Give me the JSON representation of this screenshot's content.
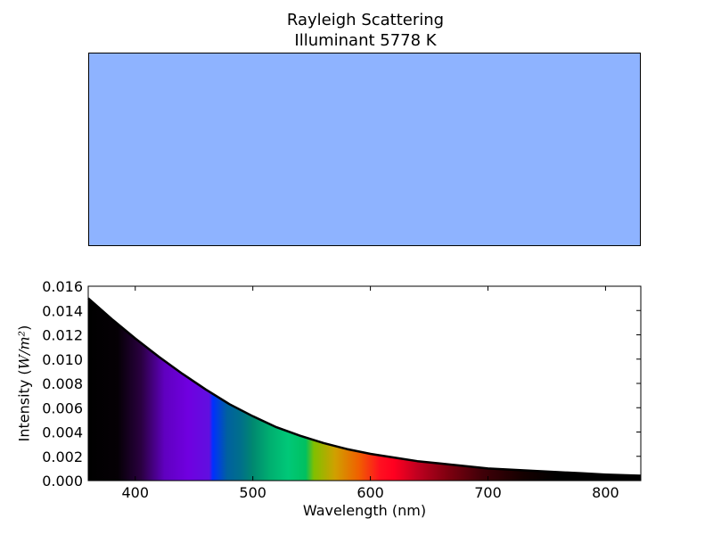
{
  "figure": {
    "title_line1": "Rayleigh Scattering",
    "title_line2": "Illuminant 5778 K",
    "swatch_color": "#8eb3ff"
  },
  "chart_data": {
    "type": "area",
    "xlabel": "Wavelength (nm)",
    "ylabel_prefix": "Intensity (",
    "ylabel_unit": "W/m²",
    "ylabel_suffix": ")",
    "xlim": [
      360,
      830
    ],
    "ylim": [
      0.0,
      0.016
    ],
    "x_ticks": [
      400,
      500,
      600,
      700,
      800
    ],
    "y_ticks": [
      "0.000",
      "0.002",
      "0.004",
      "0.006",
      "0.008",
      "0.010",
      "0.012",
      "0.014",
      "0.016"
    ],
    "grid": false,
    "series": [
      {
        "x": [
          360,
          380,
          400,
          420,
          440,
          460,
          480,
          500,
          520,
          540,
          560,
          580,
          600,
          620,
          640,
          660,
          680,
          700,
          720,
          740,
          760,
          780,
          800,
          830
        ],
        "y": [
          0.015,
          0.0133,
          0.0117,
          0.0102,
          0.0088,
          0.0075,
          0.0063,
          0.0053,
          0.0044,
          0.0037,
          0.0031,
          0.0026,
          0.0022,
          0.0019,
          0.0016,
          0.0014,
          0.0012,
          0.001,
          0.0009,
          0.0008,
          0.0007,
          0.0006,
          0.0005,
          0.0004
        ]
      }
    ],
    "spectrum_stops": [
      {
        "wl": 360,
        "color": "#000000"
      },
      {
        "wl": 385,
        "color": "#050005"
      },
      {
        "wl": 405,
        "color": "#2a0040"
      },
      {
        "wl": 425,
        "color": "#6000c0"
      },
      {
        "wl": 445,
        "color": "#7000e0"
      },
      {
        "wl": 463,
        "color": "#6010e0"
      },
      {
        "wl": 466,
        "color": "#0030ff"
      },
      {
        "wl": 478,
        "color": "#0060a0"
      },
      {
        "wl": 490,
        "color": "#00708a"
      },
      {
        "wl": 500,
        "color": "#008870"
      },
      {
        "wl": 515,
        "color": "#00b070"
      },
      {
        "wl": 530,
        "color": "#00c878"
      },
      {
        "wl": 545,
        "color": "#00c060"
      },
      {
        "wl": 552,
        "color": "#80c000"
      },
      {
        "wl": 570,
        "color": "#d0a000"
      },
      {
        "wl": 590,
        "color": "#f06000"
      },
      {
        "wl": 608,
        "color": "#ff1020"
      },
      {
        "wl": 620,
        "color": "#ff0020"
      },
      {
        "wl": 640,
        "color": "#c00020"
      },
      {
        "wl": 665,
        "color": "#800010"
      },
      {
        "wl": 695,
        "color": "#400008"
      },
      {
        "wl": 730,
        "color": "#150000"
      },
      {
        "wl": 760,
        "color": "#000000"
      },
      {
        "wl": 830,
        "color": "#000000"
      }
    ]
  }
}
